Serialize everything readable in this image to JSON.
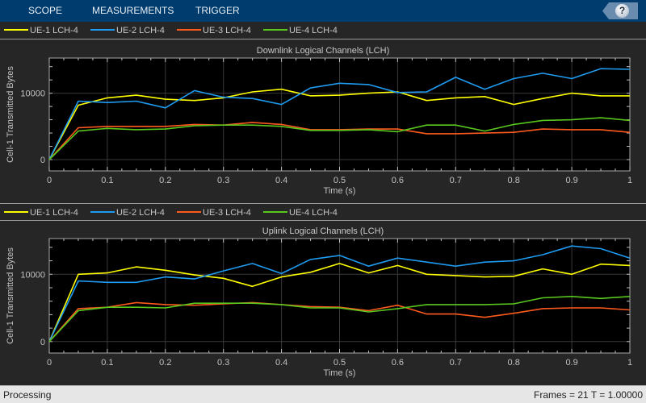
{
  "toolstrip": {
    "tabs": [
      "SCOPE",
      "MEASUREMENTS",
      "TRIGGER"
    ],
    "help_label": "?"
  },
  "colors": {
    "ue1": "#ffff00",
    "ue2": "#1e9bf0",
    "ue3": "#ff5a1e",
    "ue4": "#58c81e"
  },
  "legend": [
    "UE-1 LCH-4",
    "UE-2 LCH-4",
    "UE-3 LCH-4",
    "UE-4 LCH-4"
  ],
  "status": {
    "left": "Processing",
    "right": "Frames = 21  T = 1.00000"
  },
  "chart_data": [
    {
      "type": "line",
      "title": "Downlink Logical Channels (LCH)",
      "xlabel": "Time (s)",
      "ylabel": "Cell-1 Transmitted Bytes",
      "xlim": [
        0,
        1
      ],
      "ylim": [
        -1700,
        15300
      ],
      "xticks": [
        0,
        0.1,
        0.2,
        0.3,
        0.4,
        0.5,
        0.6,
        0.7,
        0.8,
        0.9,
        1
      ],
      "xtick_labels": [
        "0",
        "0.1",
        "0.2",
        "0.3",
        "0.4",
        "0.5",
        "0.6",
        "0.7",
        "0.8",
        "0.9",
        "1"
      ],
      "yticks": [
        0,
        10000
      ],
      "ytick_labels": [
        "0",
        "10000"
      ],
      "grid": true,
      "legend_position": "top",
      "x": [
        0,
        0.05,
        0.1,
        0.15,
        0.2,
        0.25,
        0.3,
        0.35,
        0.4,
        0.45,
        0.5,
        0.55,
        0.6,
        0.65,
        0.7,
        0.75,
        0.8,
        0.85,
        0.9,
        0.95,
        1
      ],
      "series": [
        {
          "name": "UE-1 LCH-4",
          "values": [
            0,
            8200,
            9300,
            9700,
            9100,
            8900,
            9300,
            10200,
            10600,
            9600,
            9700,
            10000,
            10200,
            8900,
            9300,
            9500,
            8300,
            9200,
            10000,
            9600,
            9600
          ]
        },
        {
          "name": "UE-2 LCH-4",
          "values": [
            0,
            8800,
            8600,
            8800,
            7800,
            10400,
            9400,
            9200,
            8300,
            10800,
            11500,
            11300,
            10100,
            10200,
            12400,
            10600,
            12200,
            13000,
            12200,
            13700,
            13600
          ]
        },
        {
          "name": "UE-3 LCH-4",
          "values": [
            0,
            4800,
            5000,
            5000,
            5000,
            5300,
            5200,
            5600,
            5300,
            4500,
            4500,
            4600,
            4600,
            3900,
            3900,
            4000,
            4100,
            4600,
            4500,
            4500,
            4100
          ]
        },
        {
          "name": "UE-4 LCH-4",
          "values": [
            0,
            4300,
            4700,
            4500,
            4600,
            5100,
            5200,
            5200,
            5000,
            4400,
            4400,
            4500,
            4200,
            5200,
            5200,
            4300,
            5300,
            5900,
            6000,
            6300,
            5900
          ]
        }
      ]
    },
    {
      "type": "line",
      "title": "Uplink Logical Channels (LCH)",
      "xlabel": "Time (s)",
      "ylabel": "Cell-1 Transmitted Bytes",
      "xlim": [
        0,
        1
      ],
      "ylim": [
        -1700,
        15300
      ],
      "xticks": [
        0,
        0.1,
        0.2,
        0.3,
        0.4,
        0.5,
        0.6,
        0.7,
        0.8,
        0.9,
        1
      ],
      "xtick_labels": [
        "0",
        "0.1",
        "0.2",
        "0.3",
        "0.4",
        "0.5",
        "0.6",
        "0.7",
        "0.8",
        "0.9",
        "1"
      ],
      "yticks": [
        0,
        10000
      ],
      "ytick_labels": [
        "0",
        "10000"
      ],
      "grid": true,
      "legend_position": "top",
      "x": [
        0,
        0.05,
        0.1,
        0.15,
        0.2,
        0.25,
        0.3,
        0.35,
        0.4,
        0.45,
        0.5,
        0.55,
        0.6,
        0.65,
        0.7,
        0.75,
        0.8,
        0.85,
        0.9,
        0.95,
        1
      ],
      "series": [
        {
          "name": "UE-1 LCH-4",
          "values": [
            0,
            10000,
            10200,
            11100,
            10600,
            9900,
            9400,
            8200,
            9600,
            10300,
            11600,
            10200,
            11300,
            10000,
            9800,
            9600,
            9700,
            10800,
            10000,
            11500,
            11300
          ]
        },
        {
          "name": "UE-2 LCH-4",
          "values": [
            0,
            9000,
            8800,
            8800,
            9600,
            9300,
            10500,
            11600,
            10100,
            12200,
            12800,
            11200,
            12400,
            11800,
            11200,
            11800,
            12000,
            12900,
            14200,
            13800,
            12400
          ]
        },
        {
          "name": "UE-3 LCH-4",
          "values": [
            0,
            4900,
            5100,
            5800,
            5500,
            5400,
            5600,
            5800,
            5500,
            5200,
            5100,
            4600,
            5400,
            4100,
            4100,
            3600,
            4200,
            4900,
            5000,
            5000,
            4700
          ]
        },
        {
          "name": "UE-4 LCH-4",
          "values": [
            0,
            4600,
            5100,
            5100,
            5000,
            5700,
            5700,
            5700,
            5500,
            5000,
            5000,
            4400,
            4900,
            5500,
            5500,
            5500,
            5600,
            6500,
            6700,
            6400,
            6700
          ]
        }
      ]
    }
  ]
}
